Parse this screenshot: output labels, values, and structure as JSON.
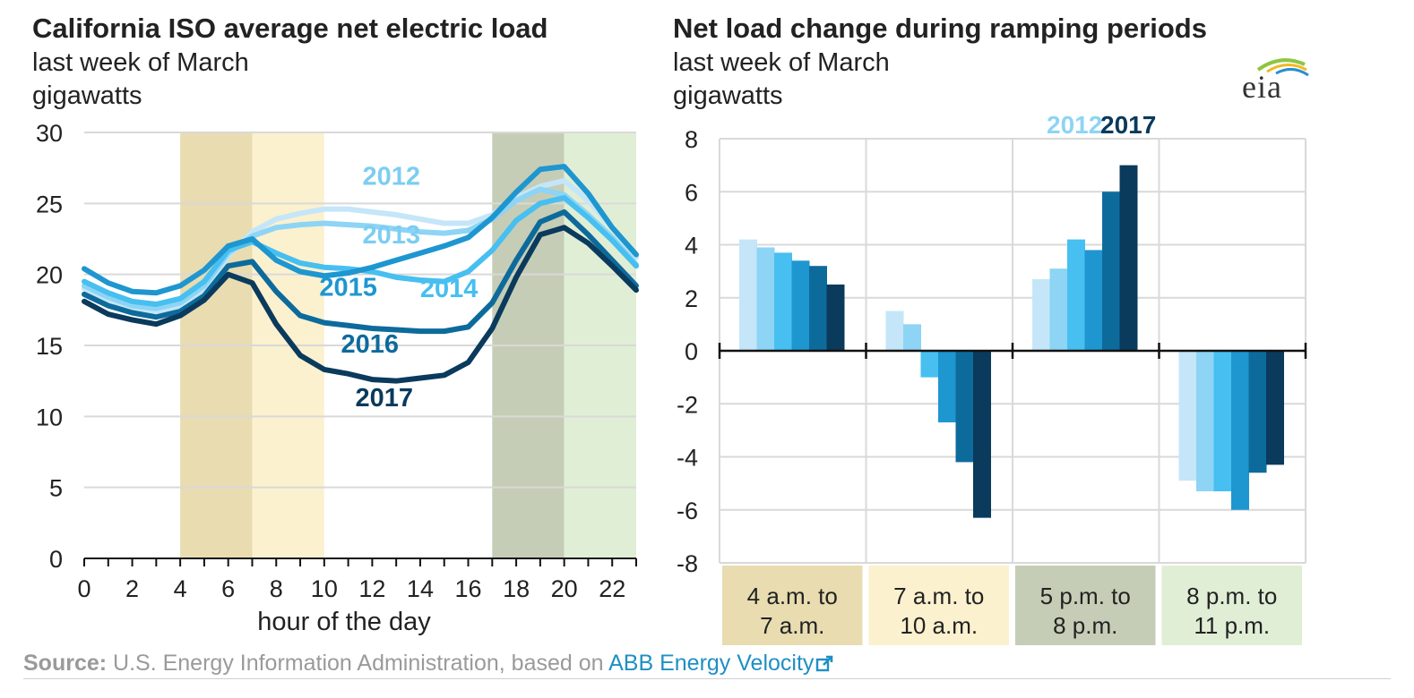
{
  "left_title": "California ISO average net electric load",
  "left_subtitle": "last week of March",
  "left_units": "gigawatts",
  "right_title": "Net load change during ramping periods",
  "right_subtitle": "last week of March",
  "right_units": "gigawatts",
  "logo_text": "eia",
  "source_label": "Source:",
  "source_text": " U.S. Energy Information Administration, based on ",
  "source_link": "ABB Energy Velocity",
  "chart_data": [
    {
      "type": "line",
      "title": "California ISO average net electric load",
      "xlabel": "hour of the day",
      "ylabel": "gigawatts",
      "xlim": [
        0,
        23
      ],
      "ylim": [
        0,
        30
      ],
      "xticks": [
        "0",
        "2",
        "4",
        "6",
        "8",
        "10",
        "12",
        "14",
        "16",
        "18",
        "20",
        "22"
      ],
      "yticks": [
        "0",
        "5",
        "10",
        "15",
        "20",
        "25",
        "30"
      ],
      "x": [
        0,
        1,
        2,
        3,
        4,
        5,
        6,
        7,
        8,
        9,
        10,
        11,
        12,
        13,
        14,
        15,
        16,
        17,
        18,
        19,
        20,
        21,
        22,
        23
      ],
      "shaded_periods": [
        {
          "start": 4,
          "end": 7,
          "color": "#e8dcb0"
        },
        {
          "start": 7,
          "end": 10,
          "color": "#fbf1cf"
        },
        {
          "start": 17,
          "end": 20,
          "color": "#c6cdb6"
        },
        {
          "start": 20,
          "end": 23,
          "color": "#e0eed6"
        }
      ],
      "series": [
        {
          "name": "2012",
          "color": "#c4e6f8",
          "values": [
            19.0,
            18.2,
            17.6,
            17.4,
            17.8,
            19.0,
            21.3,
            23.0,
            23.9,
            24.3,
            24.6,
            24.6,
            24.4,
            24.2,
            23.9,
            23.6,
            23.6,
            24.2,
            25.4,
            26.2,
            26.6,
            25.2,
            23.3,
            21.2
          ]
        },
        {
          "name": "2013",
          "color": "#8dd4f5",
          "values": [
            19.2,
            18.4,
            17.8,
            17.6,
            18.0,
            19.2,
            21.5,
            22.7,
            23.3,
            23.5,
            23.6,
            23.5,
            23.4,
            23.2,
            23.0,
            22.9,
            23.1,
            23.9,
            25.2,
            26.0,
            25.6,
            24.2,
            22.6,
            20.7
          ]
        },
        {
          "name": "2014",
          "color": "#47bff0",
          "values": [
            19.5,
            18.7,
            18.1,
            17.9,
            18.3,
            19.5,
            21.7,
            22.3,
            21.5,
            20.8,
            20.5,
            20.4,
            20.2,
            19.8,
            19.6,
            19.5,
            20.2,
            21.7,
            23.8,
            25.0,
            25.4,
            24.0,
            22.4,
            20.6
          ]
        },
        {
          "name": "2015",
          "color": "#1e96d0",
          "values": [
            20.4,
            19.4,
            18.8,
            18.7,
            19.2,
            20.3,
            22.0,
            22.5,
            21.0,
            20.2,
            19.9,
            20.1,
            20.5,
            21.0,
            21.5,
            22.0,
            22.6,
            24.0,
            25.8,
            27.4,
            27.6,
            25.7,
            23.3,
            21.4
          ]
        },
        {
          "name": "2016",
          "color": "#0d6b9c",
          "values": [
            18.6,
            17.8,
            17.3,
            17.0,
            17.4,
            18.5,
            20.6,
            20.9,
            18.8,
            17.1,
            16.6,
            16.4,
            16.2,
            16.1,
            16.0,
            16.0,
            16.3,
            18.0,
            21.0,
            23.7,
            24.4,
            22.8,
            21.0,
            19.2
          ]
        },
        {
          "name": "2017",
          "color": "#0a3a5c",
          "values": [
            18.1,
            17.2,
            16.8,
            16.5,
            17.1,
            18.2,
            20.0,
            19.4,
            16.5,
            14.3,
            13.3,
            13.0,
            12.6,
            12.5,
            12.7,
            12.9,
            13.8,
            16.2,
            19.8,
            22.8,
            23.3,
            22.2,
            20.6,
            18.9
          ]
        }
      ],
      "annotations": [
        {
          "text": "2012",
          "x": 12.8,
          "y": 26.3,
          "color": "#7ccdf2"
        },
        {
          "text": "2013",
          "x": 12.8,
          "y": 22.2,
          "color": "#7ccdf2"
        },
        {
          "text": "2014",
          "x": 15.2,
          "y": 18.4,
          "color": "#47bff0"
        },
        {
          "text": "2015",
          "x": 11.0,
          "y": 18.5,
          "color": "#1e96d0"
        },
        {
          "text": "2016",
          "x": 11.9,
          "y": 14.5,
          "color": "#0d6b9c"
        },
        {
          "text": "2017",
          "x": 12.5,
          "y": 10.7,
          "color": "#0a3a5c"
        }
      ]
    },
    {
      "type": "bar",
      "title": "Net load change during ramping periods",
      "ylabel": "gigawatts",
      "ylim": [
        -8,
        8
      ],
      "yticks": [
        "8",
        "6",
        "4",
        "2",
        "0",
        "-2",
        "-4",
        "-6",
        "-8"
      ],
      "categories": [
        "4 a.m. to 7 a.m.",
        "7 a.m. to 10 a.m.",
        "5 p.m. to 8 p.m.",
        "8 p.m. to 11 p.m."
      ],
      "category_lines": [
        [
          "4 a.m. to",
          "7 a.m."
        ],
        [
          "7 a.m. to",
          "10 a.m."
        ],
        [
          "5 p.m. to",
          "8 p.m."
        ],
        [
          "8 p.m. to",
          "11 p.m."
        ]
      ],
      "category_colors": [
        "#e8dcb0",
        "#fbf1cf",
        "#c6cdb6",
        "#e0eed6"
      ],
      "legend": {
        "start": "2012",
        "end": "2017",
        "start_color": "#8dd4f5",
        "end_color": "#0a3a5c"
      },
      "series": [
        {
          "name": "2012",
          "color": "#c4e6f8",
          "values": [
            4.2,
            1.5,
            2.7,
            -4.9
          ]
        },
        {
          "name": "2013",
          "color": "#8dd4f5",
          "values": [
            3.9,
            1.0,
            3.1,
            -5.3
          ]
        },
        {
          "name": "2014",
          "color": "#47bff0",
          "values": [
            3.7,
            -1.0,
            4.2,
            -5.3
          ]
        },
        {
          "name": "2015",
          "color": "#1e96d0",
          "values": [
            3.4,
            -2.7,
            3.8,
            -6.0
          ]
        },
        {
          "name": "2016",
          "color": "#0d6b9c",
          "values": [
            3.2,
            -4.2,
            6.0,
            -4.6
          ]
        },
        {
          "name": "2017",
          "color": "#0a3a5c",
          "values": [
            2.5,
            -6.3,
            7.0,
            -4.3
          ]
        }
      ]
    }
  ]
}
